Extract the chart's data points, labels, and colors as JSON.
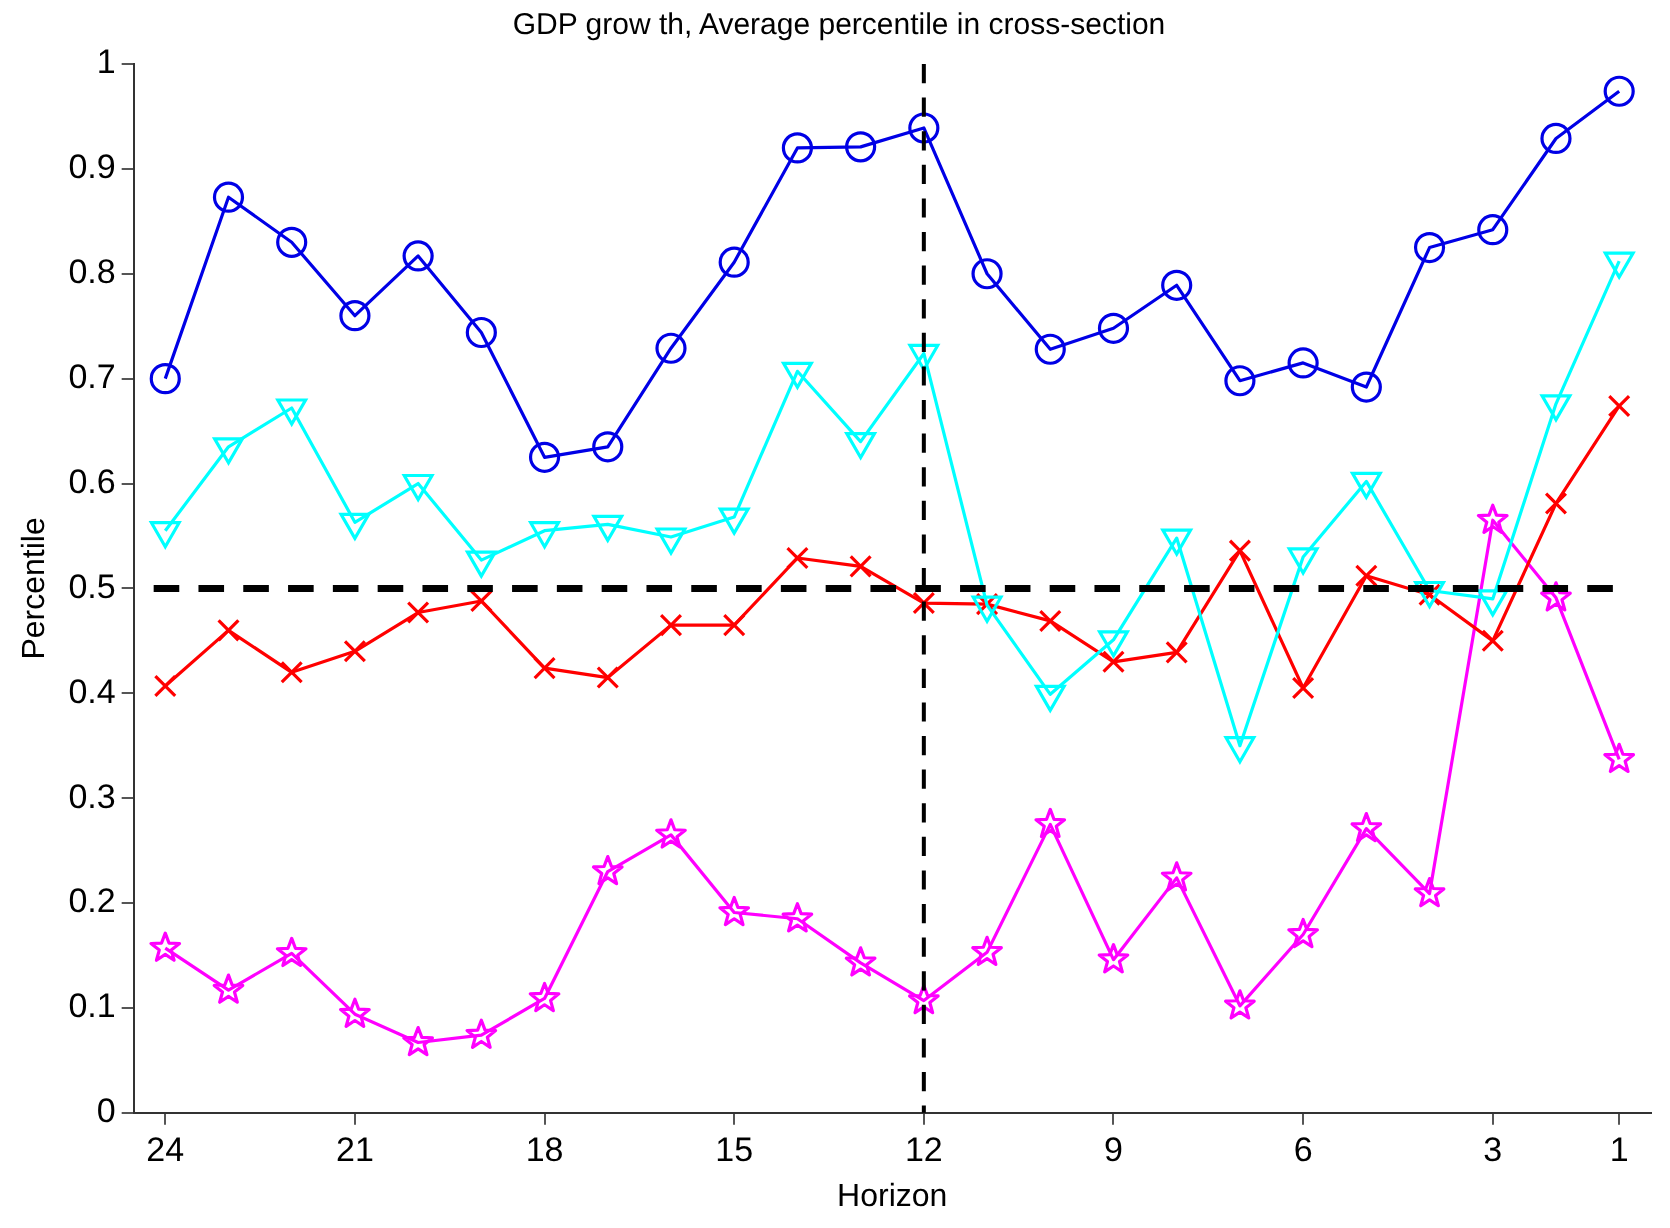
{
  "chart_data": {
    "type": "line",
    "title": "GDP grow th, Average percentile in cross-section",
    "xlabel": "Horizon",
    "ylabel": "Percentile",
    "x": [
      24,
      23,
      22,
      21,
      20,
      19,
      18,
      17,
      16,
      15,
      14,
      13,
      12,
      11,
      10,
      9,
      8,
      7,
      6,
      5,
      4,
      3,
      2,
      1
    ],
    "series": [
      {
        "color": "#0000e6",
        "marker": "circle",
        "values": [
          0.7,
          0.873,
          0.83,
          0.76,
          0.817,
          0.744,
          0.625,
          0.635,
          0.729,
          0.811,
          0.92,
          0.921,
          0.939,
          0.8,
          0.728,
          0.748,
          0.789,
          0.698,
          0.715,
          0.692,
          0.825,
          0.842,
          0.929,
          0.974
        ]
      },
      {
        "color": "#00ffff",
        "marker": "triangle",
        "values": [
          0.555,
          0.635,
          0.672,
          0.563,
          0.6,
          0.527,
          0.555,
          0.561,
          0.549,
          0.568,
          0.707,
          0.64,
          0.724,
          0.484,
          0.399,
          0.451,
          0.548,
          0.35,
          0.53,
          0.602,
          0.498,
          0.49,
          0.676,
          0.812
        ]
      },
      {
        "color": "#ff0000",
        "marker": "cross",
        "values": [
          0.407,
          0.46,
          0.42,
          0.44,
          0.477,
          0.488,
          0.424,
          0.415,
          0.465,
          0.465,
          0.529,
          0.521,
          0.486,
          0.485,
          0.469,
          0.43,
          0.439,
          0.536,
          0.405,
          0.512,
          0.494,
          0.45,
          0.581,
          0.674
        ]
      },
      {
        "color": "#ff00ff",
        "marker": "star",
        "values": [
          0.157,
          0.117,
          0.152,
          0.094,
          0.067,
          0.074,
          0.109,
          0.23,
          0.265,
          0.191,
          0.185,
          0.143,
          0.107,
          0.153,
          0.275,
          0.146,
          0.224,
          0.102,
          0.17,
          0.271,
          0.209,
          0.565,
          0.491,
          0.337
        ]
      }
    ],
    "xlim": [
      24.5,
      0.5
    ],
    "xticks": [
      24,
      21,
      18,
      15,
      12,
      9,
      6,
      3,
      1
    ],
    "ylim": [
      0,
      1
    ],
    "yticks": [
      0,
      0.1,
      0.2,
      0.3,
      0.4,
      0.5,
      0.6,
      0.7,
      0.8,
      0.9,
      1
    ],
    "ref_lines": [
      {
        "axis": "y",
        "value": 0.5,
        "color": "#000000",
        "line_style": "dashed"
      },
      {
        "axis": "x",
        "value": 12,
        "color": "#000000",
        "line_style": "dashed"
      }
    ],
    "grid": false,
    "legend": false,
    "line_style": "solid"
  }
}
